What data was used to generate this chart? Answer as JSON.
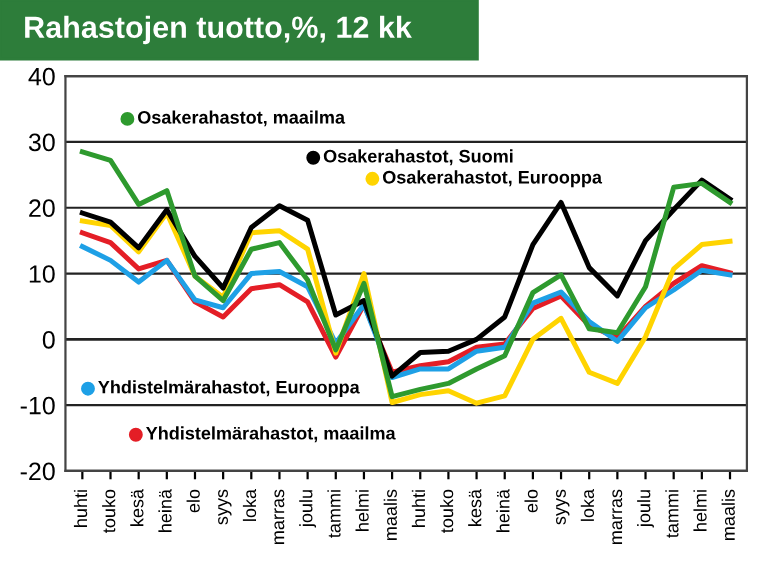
{
  "chart_data": {
    "type": "line",
    "title": "Rahastojen tuotto,%, 12 kk",
    "categories": [
      "huhti",
      "touko",
      "kesä",
      "heinä",
      "elo",
      "syys",
      "loka",
      "marras",
      "joulu",
      "tammi",
      "helmi",
      "maalis",
      "huhti",
      "touko",
      "kesä",
      "heinä",
      "elo",
      "syys",
      "loka",
      "marras",
      "joulu",
      "tammi",
      "helmi",
      "maalis"
    ],
    "series": [
      {
        "name": "Osakerahastot, maailma",
        "color": "#2e9a2e",
        "values": [
          28.5,
          27.2,
          20.5,
          22.6,
          9.6,
          5.9,
          13.7,
          14.7,
          9,
          -1.6,
          8.5,
          -8.7,
          -7.6,
          -6.7,
          -4.5,
          -2.5,
          7.1,
          9.8,
          1.6,
          1,
          8,
          23.1,
          23.7,
          20.8
        ]
      },
      {
        "name": "Osakerahastot, Suomi",
        "color": "#000000",
        "values": [
          19.2,
          17.8,
          13.9,
          19.7,
          12.6,
          7.8,
          17,
          20.3,
          18.1,
          3.7,
          5.9,
          -5.6,
          -2,
          -1.8,
          0,
          3.4,
          14.4,
          20.8,
          10.9,
          6.6,
          15,
          19.7,
          24.2,
          21.3
        ]
      },
      {
        "name": "Osakerahastot, Eurooppa",
        "color": "#ffd400",
        "values": [
          18,
          17.3,
          13.3,
          19.2,
          9.6,
          6.4,
          16.2,
          16.5,
          13.7,
          -2.1,
          10,
          -9.6,
          -8.4,
          -7.8,
          -9.7,
          -8.6,
          0,
          3.2,
          -5,
          -6.7,
          0.4,
          10.7,
          14.4,
          14.9
        ]
      },
      {
        "name": "Yhdistelmärahastot, Eurooppa",
        "color": "#1ea0e6",
        "values": [
          14.1,
          12,
          8.7,
          12,
          6,
          4.8,
          10,
          10.3,
          8,
          -0.6,
          5.3,
          -5.8,
          -4.5,
          -4.5,
          -1.8,
          -1.2,
          5.5,
          7.2,
          2.7,
          -0.3,
          4.8,
          7.5,
          10.5,
          9.8
        ]
      },
      {
        "name": "Yhdistelmärahastot, maailma",
        "color": "#e41e26",
        "values": [
          16.2,
          14.7,
          10.7,
          12,
          5.7,
          3.4,
          7.7,
          8.3,
          5.7,
          -2.7,
          5.3,
          -5,
          -4,
          -3.4,
          -1.2,
          -0.7,
          4.7,
          6.6,
          2.1,
          0.2,
          5,
          8.5,
          11.2,
          10.1
        ]
      }
    ],
    "ylim": [
      -20,
      40
    ],
    "yticks": [
      -20,
      -10,
      0,
      10,
      20,
      30,
      40
    ],
    "grid": "y",
    "legend": "bottom left",
    "marker": "none",
    "line_style": "solid"
  }
}
